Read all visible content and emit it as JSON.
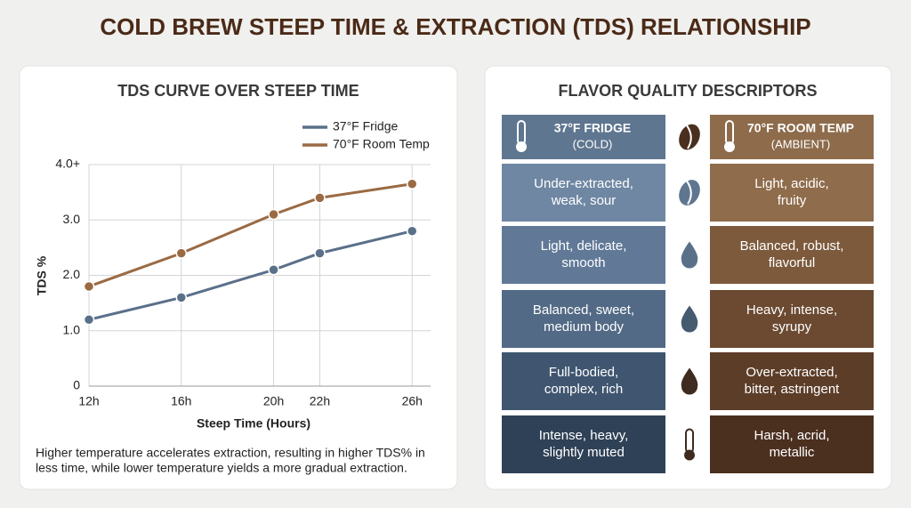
{
  "header": {
    "title": "COLD BREW STEEP TIME & EXTRACTION (TDS) RELATIONSHIP"
  },
  "chart_data": {
    "type": "line",
    "title": "TDS CURVE OVER STEEP TIME",
    "x_label": "Steep Time (Hours)",
    "y_label": "TDS %",
    "x": [
      12,
      16,
      20,
      22,
      26
    ],
    "series": [
      {
        "name": "37°F Fridge",
        "color": "#5a7089",
        "values": [
          1.2,
          1.6,
          2.1,
          2.4,
          2.8
        ]
      },
      {
        "name": "70°F Room Temp",
        "color": "#9a6a43",
        "values": [
          1.8,
          2.4,
          3.1,
          3.4,
          3.65
        ]
      }
    ],
    "xlim": [
      12,
      26.8
    ],
    "xticks": [
      {
        "value": 12,
        "label": "12h"
      },
      {
        "value": 16,
        "label": "16h"
      },
      {
        "value": 20,
        "label": "20h"
      },
      {
        "value": 22,
        "label": "22h"
      },
      {
        "value": 26,
        "label": "26h"
      }
    ],
    "ylim": [
      0,
      4
    ],
    "yticks": [
      0,
      {
        "value": 1,
        "label": "1.0"
      },
      {
        "value": 2,
        "label": "2.0"
      },
      {
        "value": 3,
        "label": "3.0"
      },
      {
        "value": 4,
        "label": "4.0+"
      }
    ],
    "grid": true,
    "legend": "upper right"
  },
  "caption": [
    "Higher temperature accelerates extraction, resulting in higher TDS% in",
    "less time, while lower temperature yields a more gradual extraction."
  ],
  "flavor": {
    "title": "FLAVOR QUALITY DESCRIPTORS",
    "columns": [
      {
        "title": "37°F FRIDGE",
        "subtitle": "(COLD)"
      },
      {
        "title": "70°F ROOM TEMP",
        "subtitle": "(AMBIENT)"
      }
    ],
    "rows": [
      {
        "cold": [
          "Under-extracted,",
          "weak, sour"
        ],
        "warm": [
          "Light, acidic,",
          "fruity"
        ]
      },
      {
        "cold": [
          "Light, delicate,",
          "smooth"
        ],
        "warm": [
          "Balanced, robust,",
          "flavorful"
        ]
      },
      {
        "cold": [
          "Balanced, sweet,",
          "medium body"
        ],
        "warm": [
          "Heavy, intense,",
          "syrupy"
        ]
      },
      {
        "cold": [
          "Full-bodied,",
          "complex, rich"
        ],
        "warm": [
          "Over-extracted,",
          "bitter, astringent"
        ]
      },
      {
        "cold": [
          "Intense, heavy,",
          "slightly muted"
        ],
        "warm": [
          "Harsh, acrid,",
          "metallic"
        ]
      }
    ]
  }
}
